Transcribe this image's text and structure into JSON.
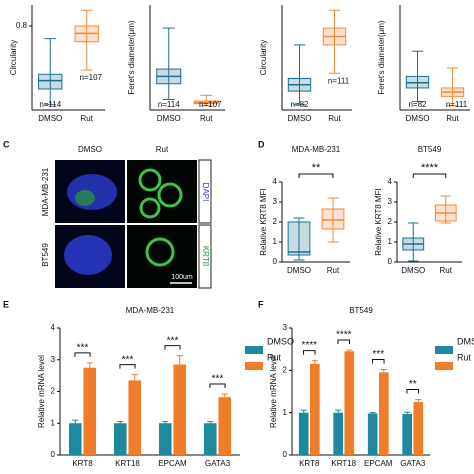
{
  "panel_labels": [
    "C",
    "D",
    "E",
    "F"
  ],
  "panel_c": {
    "columns": [
      "DMSO",
      "Rut"
    ],
    "rows": [
      "MDA-MB-231",
      "BT549"
    ],
    "stains": [
      "DAPI",
      "KRT8"
    ],
    "scale_bar": "100um"
  },
  "chart_data": [
    {
      "type": "box",
      "ylabel": "Circularity",
      "categories": [
        "DMSO",
        "Rut"
      ],
      "colors": [
        "#1f6f8b",
        "#f08a3c"
      ],
      "stats": [
        [
          0.05,
          0.2,
          0.28,
          0.34,
          0.68
        ],
        [
          0.38,
          0.65,
          0.73,
          0.8,
          0.95
        ]
      ],
      "n_labels": [
        "n=114",
        "n=107"
      ],
      "ylim": [
        0,
        1
      ],
      "yticks": [
        0.8
      ]
    },
    {
      "type": "box",
      "ylabel": "Feret's diameter(μm)",
      "categories": [
        "DMSO",
        "Rut"
      ],
      "colors": [
        "#1f6f8b",
        "#f08a3c"
      ],
      "stats": [
        [
          100,
          250,
          320,
          390,
          780
        ],
        [
          40,
          60,
          70,
          85,
          140
        ]
      ],
      "n_labels": [
        "n=114",
        "n=107"
      ],
      "ylim": [
        0,
        1000
      ]
    },
    {
      "type": "box",
      "ylabel": "Circularity",
      "categories": [
        "DMSO",
        "Rut"
      ],
      "colors": [
        "#1f6f8b",
        "#f08a3c"
      ],
      "stats": [
        [
          0.05,
          0.18,
          0.24,
          0.3,
          0.62
        ],
        [
          0.35,
          0.62,
          0.7,
          0.78,
          0.95
        ]
      ],
      "n_labels": [
        "n=82",
        "n=111"
      ],
      "ylim": [
        0,
        1
      ]
    },
    {
      "type": "box",
      "ylabel": "Feret's diameter(μm)",
      "categories": [
        "DMSO",
        "Rut"
      ],
      "colors": [
        "#1f6f8b",
        "#f08a3c"
      ],
      "stats": [
        [
          80,
          210,
          260,
          320,
          560
        ],
        [
          40,
          130,
          170,
          210,
          400
        ]
      ],
      "n_labels": [
        "n=82",
        "n=111"
      ],
      "ylim": [
        0,
        1000
      ]
    },
    {
      "type": "box",
      "title": "MDA-MB-231",
      "ylabel": "Relative KRT8 MFI",
      "categories": [
        "DMSO",
        "Rut"
      ],
      "colors": [
        "#1f6f8b",
        "#f08a3c"
      ],
      "stats": [
        [
          0.1,
          0.35,
          0.5,
          2.0,
          2.2
        ],
        [
          1.0,
          1.65,
          2.1,
          2.65,
          3.2
        ]
      ],
      "significance": "**",
      "ylim": [
        0,
        4
      ],
      "yticks": [
        0,
        1,
        2,
        3,
        4
      ]
    },
    {
      "type": "box",
      "title": "BT549",
      "ylabel": "Relative KRT8 MFI",
      "categories": [
        "DMSO",
        "Rut"
      ],
      "colors": [
        "#1f6f8b",
        "#f08a3c"
      ],
      "stats": [
        [
          0.05,
          0.6,
          0.9,
          1.2,
          1.95
        ],
        [
          1.95,
          2.05,
          2.45,
          2.85,
          3.3
        ]
      ],
      "significance": "****",
      "ylim": [
        0,
        4
      ],
      "yticks": [
        0,
        1,
        2,
        3,
        4
      ]
    },
    {
      "type": "bar",
      "title": "MDA-MB-231",
      "ylabel": "Relative mRNA level",
      "categories": [
        "KRT8",
        "KRT18",
        "EPCAM",
        "GATA3"
      ],
      "series": [
        {
          "name": "DMSO",
          "color": "#1f8a9e",
          "values": [
            1.0,
            1.0,
            1.0,
            1.0
          ],
          "errors": [
            0.1,
            0.05,
            0.05,
            0.05
          ]
        },
        {
          "name": "Rut",
          "color": "#f07d2a",
          "values": [
            2.75,
            2.35,
            2.85,
            1.82
          ],
          "errors": [
            0.15,
            0.18,
            0.28,
            0.1
          ]
        }
      ],
      "significance": [
        "***",
        "***",
        "***",
        "***"
      ],
      "ylim": [
        0,
        4
      ],
      "yticks": [
        0,
        1,
        2,
        3,
        4
      ]
    },
    {
      "type": "bar",
      "title": "BT549",
      "ylabel": "Relative mRNA level",
      "categories": [
        "KRT8",
        "KRT18",
        "EPCAM",
        "GATA3"
      ],
      "series": [
        {
          "name": "DMSO",
          "color": "#1f8a9e",
          "values": [
            1.0,
            1.0,
            0.98,
            0.97
          ],
          "errors": [
            0.06,
            0.06,
            0.02,
            0.04
          ]
        },
        {
          "name": "Rut",
          "color": "#f07d2a",
          "values": [
            2.15,
            2.45,
            1.95,
            1.25
          ],
          "errors": [
            0.08,
            0.03,
            0.07,
            0.06
          ]
        }
      ],
      "significance": [
        "****",
        "****",
        "***",
        "**"
      ],
      "ylim": [
        0,
        3
      ],
      "yticks": [
        0,
        1,
        2,
        3
      ]
    }
  ]
}
